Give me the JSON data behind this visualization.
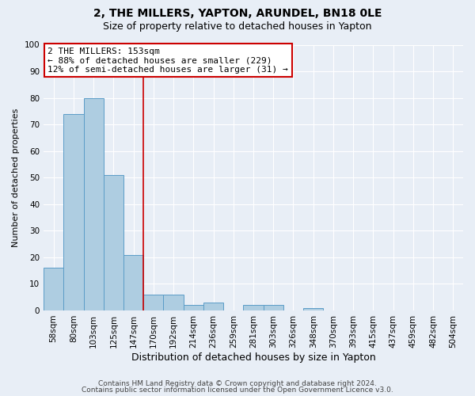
{
  "title": "2, THE MILLERS, YAPTON, ARUNDEL, BN18 0LE",
  "subtitle": "Size of property relative to detached houses in Yapton",
  "xlabel": "Distribution of detached houses by size in Yapton",
  "ylabel": "Number of detached properties",
  "bin_labels": [
    "58sqm",
    "80sqm",
    "103sqm",
    "125sqm",
    "147sqm",
    "170sqm",
    "192sqm",
    "214sqm",
    "236sqm",
    "259sqm",
    "281sqm",
    "303sqm",
    "326sqm",
    "348sqm",
    "370sqm",
    "393sqm",
    "415sqm",
    "437sqm",
    "459sqm",
    "482sqm",
    "504sqm"
  ],
  "bar_values": [
    16,
    74,
    80,
    51,
    21,
    6,
    6,
    2,
    3,
    0,
    2,
    2,
    0,
    1,
    0,
    0,
    0,
    0,
    0,
    0,
    0
  ],
  "bar_color": "#aecde1",
  "bar_edge_color": "#5b9dc7",
  "vline_color": "#cc0000",
  "annotation_text": "2 THE MILLERS: 153sqm\n← 88% of detached houses are smaller (229)\n12% of semi-detached houses are larger (31) →",
  "annotation_box_color": "#ffffff",
  "annotation_box_edge_color": "#cc0000",
  "ylim": [
    0,
    100
  ],
  "yticks": [
    0,
    10,
    20,
    30,
    40,
    50,
    60,
    70,
    80,
    90,
    100
  ],
  "background_color": "#e8eef6",
  "plot_bg_color": "#e8eef6",
  "footer_line1": "Contains HM Land Registry data © Crown copyright and database right 2024.",
  "footer_line2": "Contains public sector information licensed under the Open Government Licence v3.0.",
  "title_fontsize": 10,
  "subtitle_fontsize": 9,
  "xlabel_fontsize": 9,
  "ylabel_fontsize": 8,
  "tick_fontsize": 7.5,
  "footer_fontsize": 6.5
}
